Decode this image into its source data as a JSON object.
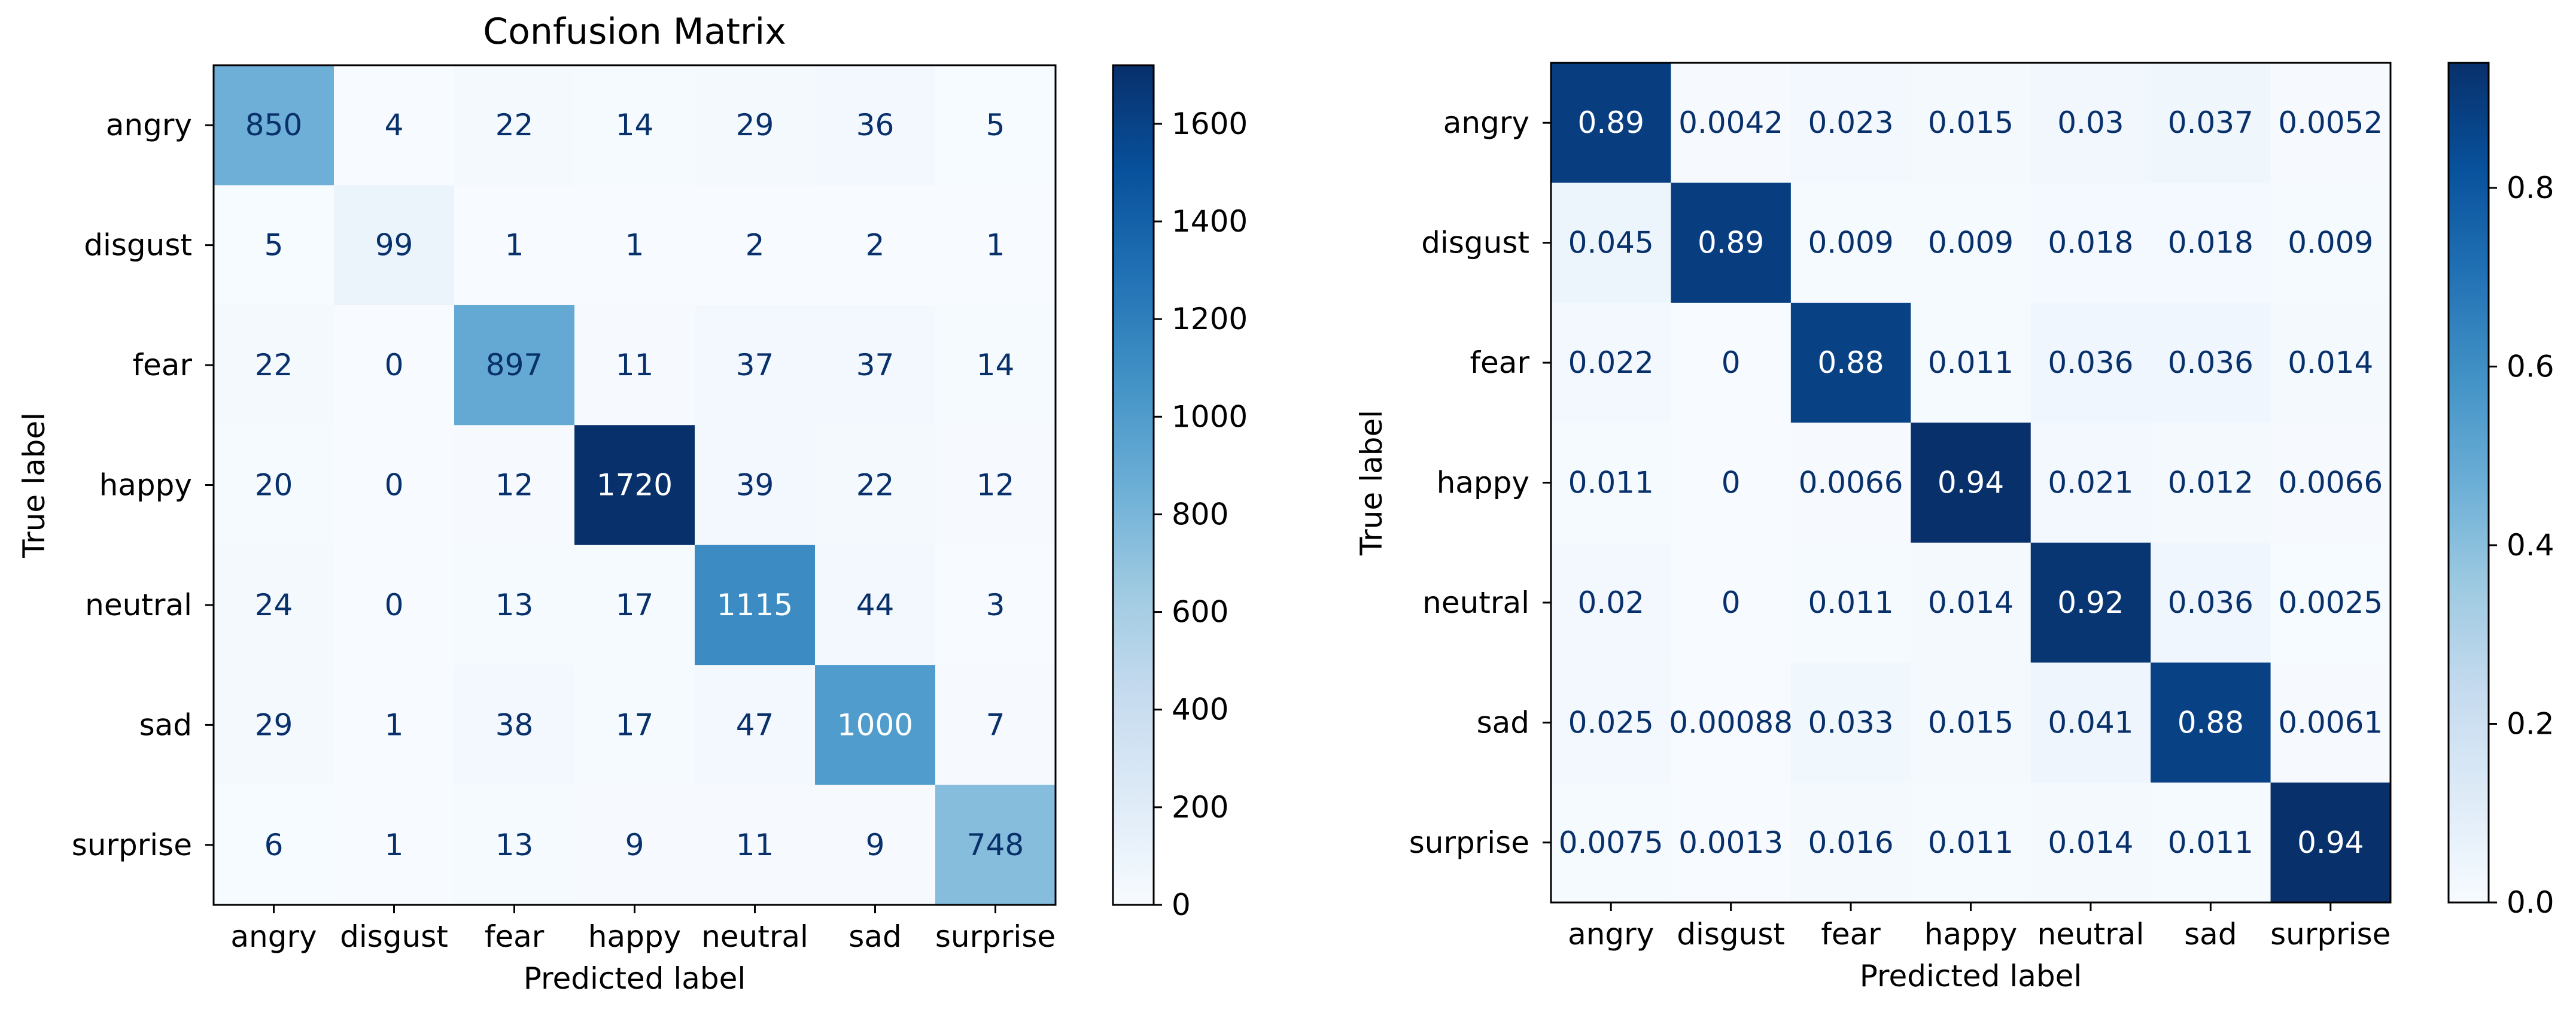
{
  "chart_data": [
    {
      "type": "heatmap",
      "title": "Confusion Matrix",
      "xlabel": "Predicted label",
      "ylabel": "True label",
      "categories": [
        "angry",
        "disgust",
        "fear",
        "happy",
        "neutral",
        "sad",
        "surprise"
      ],
      "values": [
        [
          850,
          4,
          22,
          14,
          29,
          36,
          5
        ],
        [
          5,
          99,
          1,
          1,
          2,
          2,
          1
        ],
        [
          22,
          0,
          897,
          11,
          37,
          37,
          14
        ],
        [
          20,
          0,
          12,
          1720,
          39,
          22,
          12
        ],
        [
          24,
          0,
          13,
          17,
          1115,
          44,
          3
        ],
        [
          29,
          1,
          38,
          17,
          47,
          1000,
          7
        ],
        [
          6,
          1,
          13,
          9,
          11,
          9,
          748
        ]
      ],
      "value_labels": [
        [
          "850",
          "4",
          "22",
          "14",
          "29",
          "36",
          "5"
        ],
        [
          "5",
          "99",
          "1",
          "1",
          "2",
          "2",
          "1"
        ],
        [
          "22",
          "0",
          "897",
          "11",
          "37",
          "37",
          "14"
        ],
        [
          "20",
          "0",
          "12",
          "1720",
          "39",
          "22",
          "12"
        ],
        [
          "24",
          "0",
          "13",
          "17",
          "1115",
          "44",
          "3"
        ],
        [
          "29",
          "1",
          "38",
          "17",
          "47",
          "1000",
          "7"
        ],
        [
          "6",
          "1",
          "13",
          "9",
          "11",
          "9",
          "748"
        ]
      ],
      "colormap": "Blues",
      "vmin": 0,
      "vmax": 1720,
      "colorbar_ticks": [
        0,
        200,
        400,
        600,
        800,
        1000,
        1200,
        1400,
        1600
      ],
      "colorbar_tick_labels": [
        "0",
        "200",
        "400",
        "600",
        "800",
        "1000",
        "1200",
        "1400",
        "1600"
      ]
    },
    {
      "type": "heatmap",
      "title": "",
      "xlabel": "Predicted label",
      "ylabel": "True label",
      "categories": [
        "angry",
        "disgust",
        "fear",
        "happy",
        "neutral",
        "sad",
        "surprise"
      ],
      "values": [
        [
          0.89,
          0.0042,
          0.023,
          0.015,
          0.03,
          0.037,
          0.0052
        ],
        [
          0.045,
          0.89,
          0.009,
          0.009,
          0.018,
          0.018,
          0.009
        ],
        [
          0.022,
          0,
          0.88,
          0.011,
          0.036,
          0.036,
          0.014
        ],
        [
          0.011,
          0,
          0.0066,
          0.94,
          0.021,
          0.012,
          0.0066
        ],
        [
          0.02,
          0,
          0.011,
          0.014,
          0.92,
          0.036,
          0.0025
        ],
        [
          0.025,
          0.00088,
          0.033,
          0.015,
          0.041,
          0.88,
          0.0061
        ],
        [
          0.0075,
          0.0013,
          0.016,
          0.011,
          0.014,
          0.011,
          0.94
        ]
      ],
      "value_labels": [
        [
          "0.89",
          "0.0042",
          "0.023",
          "0.015",
          "0.03",
          "0.037",
          "0.0052"
        ],
        [
          "0.045",
          "0.89",
          "0.009",
          "0.009",
          "0.018",
          "0.018",
          "0.009"
        ],
        [
          "0.022",
          "0",
          "0.88",
          "0.011",
          "0.036",
          "0.036",
          "0.014"
        ],
        [
          "0.011",
          "0",
          "0.0066",
          "0.94",
          "0.021",
          "0.012",
          "0.0066"
        ],
        [
          "0.02",
          "0",
          "0.011",
          "0.014",
          "0.92",
          "0.036",
          "0.0025"
        ],
        [
          "0.025",
          "0.00088",
          "0.033",
          "0.015",
          "0.041",
          "0.88",
          "0.0061"
        ],
        [
          "0.0075",
          "0.0013",
          "0.016",
          "0.011",
          "0.014",
          "0.011",
          "0.94"
        ]
      ],
      "colormap": "Blues",
      "vmin": 0,
      "vmax": 0.94,
      "colorbar_ticks": [
        0,
        0.2,
        0.4,
        0.6,
        0.8
      ],
      "colorbar_tick_labels": [
        "0.0",
        "0.2",
        "0.4",
        "0.6",
        "0.8"
      ]
    }
  ]
}
